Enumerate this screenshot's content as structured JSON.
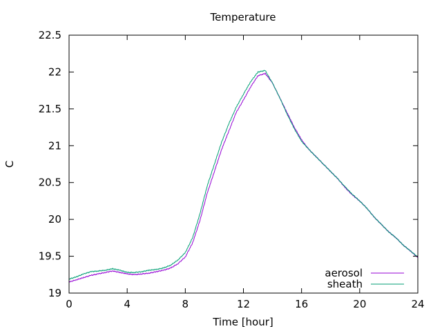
{
  "chart_data": {
    "type": "line",
    "title": "Temperature",
    "xlabel": "Time [hour]",
    "ylabel": "C",
    "xlim": [
      0,
      24
    ],
    "ylim": [
      19,
      22.5
    ],
    "x_ticks": [
      0,
      4,
      8,
      12,
      16,
      20,
      24
    ],
    "y_ticks": [
      19,
      19.5,
      20,
      20.5,
      21,
      21.5,
      22,
      22.5
    ],
    "y_tick_labels": [
      "19",
      "19.5",
      "20",
      "20.5",
      "21",
      "21.5",
      "22",
      "22.5"
    ],
    "grid": false,
    "legend_position": "bottom-right",
    "series": [
      {
        "name": "aerosol",
        "color": "#9400d3",
        "x": [
          0,
          0.5,
          1,
          1.5,
          2,
          2.5,
          3,
          3.5,
          4,
          4.5,
          5,
          5.5,
          6,
          6.5,
          7,
          7.5,
          8,
          8.5,
          9,
          9.5,
          10,
          10.5,
          11,
          11.5,
          12,
          12.5,
          13,
          13.5,
          14,
          14.5,
          15,
          15.5,
          16,
          16.5,
          17,
          17.5,
          18,
          18.5,
          19,
          19.5,
          20,
          20.5,
          21,
          21.5,
          22,
          22.5,
          23,
          23.5,
          24
        ],
        "y": [
          19.15,
          19.18,
          19.21,
          19.24,
          19.26,
          19.28,
          19.3,
          19.28,
          19.26,
          19.25,
          19.26,
          19.27,
          19.29,
          19.31,
          19.34,
          19.4,
          19.49,
          19.68,
          19.98,
          20.35,
          20.65,
          20.95,
          21.2,
          21.45,
          21.62,
          21.8,
          21.95,
          21.98,
          21.85,
          21.65,
          21.45,
          21.25,
          21.08,
          20.95,
          20.85,
          20.75,
          20.65,
          20.55,
          20.43,
          20.33,
          20.25,
          20.15,
          20.03,
          19.93,
          19.83,
          19.75,
          19.65,
          19.57,
          19.48
        ]
      },
      {
        "name": "sheath",
        "color": "#009e73",
        "x": [
          0,
          0.5,
          1,
          1.5,
          2,
          2.5,
          3,
          3.5,
          4,
          4.5,
          5,
          5.5,
          6,
          6.5,
          7,
          7.5,
          8,
          8.5,
          9,
          9.5,
          10,
          10.5,
          11,
          11.5,
          12,
          12.5,
          13,
          13.5,
          14,
          14.5,
          15,
          15.5,
          16,
          16.5,
          17,
          17.5,
          18,
          18.5,
          19,
          19.5,
          20,
          20.5,
          21,
          21.5,
          22,
          22.5,
          23,
          23.5,
          24
        ],
        "y": [
          19.19,
          19.22,
          19.26,
          19.29,
          19.3,
          19.31,
          19.33,
          19.31,
          19.28,
          19.28,
          19.29,
          19.31,
          19.32,
          19.34,
          19.38,
          19.45,
          19.55,
          19.75,
          20.07,
          20.45,
          20.75,
          21.05,
          21.3,
          21.52,
          21.7,
          21.87,
          22.0,
          22.02,
          21.85,
          21.65,
          21.43,
          21.23,
          21.06,
          20.95,
          20.85,
          20.75,
          20.65,
          20.55,
          20.44,
          20.34,
          20.25,
          20.15,
          20.03,
          19.93,
          19.83,
          19.75,
          19.65,
          19.57,
          19.49
        ]
      }
    ]
  }
}
